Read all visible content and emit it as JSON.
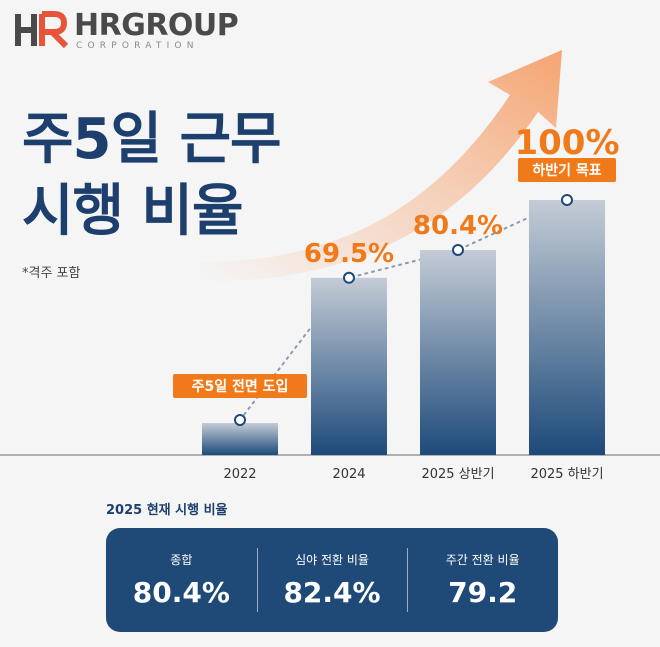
{
  "logo": {
    "name": "HRGROUP",
    "sub": "CORPORATION",
    "colors": {
      "primary": "#4a4a4a",
      "accent": "#e8543a"
    }
  },
  "headline": {
    "line1": "주5일 근무",
    "line2": "시행 비율"
  },
  "note": "*격주 포함",
  "chart_data": {
    "type": "bar",
    "categories": [
      "2022",
      "2024",
      "2025 상반기",
      "2025 하반기"
    ],
    "values": [
      null,
      69.5,
      80.4,
      100
    ],
    "value_labels": [
      "",
      "69.5%",
      "80.4%",
      "100%"
    ],
    "annotations": [
      {
        "category": "2022",
        "text": "주5일 전면 도입"
      },
      {
        "category": "2025 하반기",
        "text": "하반기 목표"
      }
    ],
    "title": "",
    "xlabel": "",
    "ylabel": "",
    "ylim": [
      0,
      100
    ],
    "grid": false,
    "legend": "none",
    "trend_line": "dotted",
    "colors": {
      "bar_top": "#c4ccd6",
      "bar_bottom": "#1d4a7a",
      "label": "#f07a1a",
      "badge": "#f07a1a",
      "arrow": "#f5a06a"
    }
  },
  "summary": {
    "caption": "2025 현재 시행 비율",
    "stats": [
      {
        "label": "종합",
        "value": "80.4%"
      },
      {
        "label": "심야 전환 비율",
        "value": "82.4%"
      },
      {
        "label": "주간 전환 비율",
        "value": "79.2"
      }
    ]
  }
}
